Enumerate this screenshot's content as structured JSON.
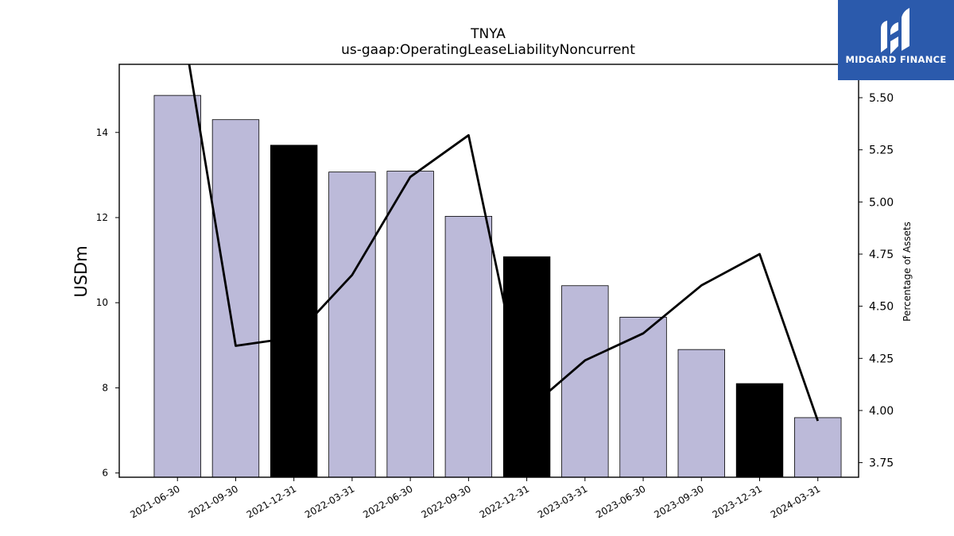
{
  "brand": {
    "name": "MIDGARD FINANCE",
    "color": "#2b5aac"
  },
  "chart_data": {
    "type": "bar",
    "title": "TNYA",
    "subtitle": "us-gaap:OperatingLeaseLiabilityNoncurrent",
    "ylabel": "USDm",
    "y2label": "Percentage of Assets",
    "categories": [
      "2021-06-30",
      "2021-09-30",
      "2021-12-31",
      "2022-03-31",
      "2022-06-30",
      "2022-09-30",
      "2022-12-31",
      "2023-03-31",
      "2023-06-30",
      "2023-09-30",
      "2023-12-31",
      "2024-03-31"
    ],
    "series": [
      {
        "type": "bar",
        "values": [
          14.87,
          14.3,
          13.7,
          13.07,
          13.09,
          12.03,
          11.08,
          10.4,
          9.66,
          8.9,
          8.1,
          7.3
        ],
        "colors": [
          "#bcbad9",
          "#bcbad9",
          "#000000",
          "#bcbad9",
          "#bcbad9",
          "#bcbad9",
          "#000000",
          "#bcbad9",
          "#bcbad9",
          "#bcbad9",
          "#000000",
          "#bcbad9"
        ]
      },
      {
        "type": "line",
        "axis": "right",
        "values": [
          6.0,
          4.31,
          4.35,
          4.65,
          5.12,
          5.32,
          4.0,
          4.24,
          4.37,
          4.6,
          4.75,
          3.95
        ],
        "color": "#000000"
      }
    ],
    "ylim": [
      5.9,
      15.6
    ],
    "y2lim": [
      3.68,
      5.66
    ],
    "yticks": [
      "6",
      "8",
      "10",
      "12",
      "14"
    ],
    "y2ticks": [
      "3.75",
      "4.00",
      "4.25",
      "4.50",
      "4.75",
      "5.00",
      "5.25",
      "5.50"
    ],
    "grid": false,
    "legend": "none"
  }
}
